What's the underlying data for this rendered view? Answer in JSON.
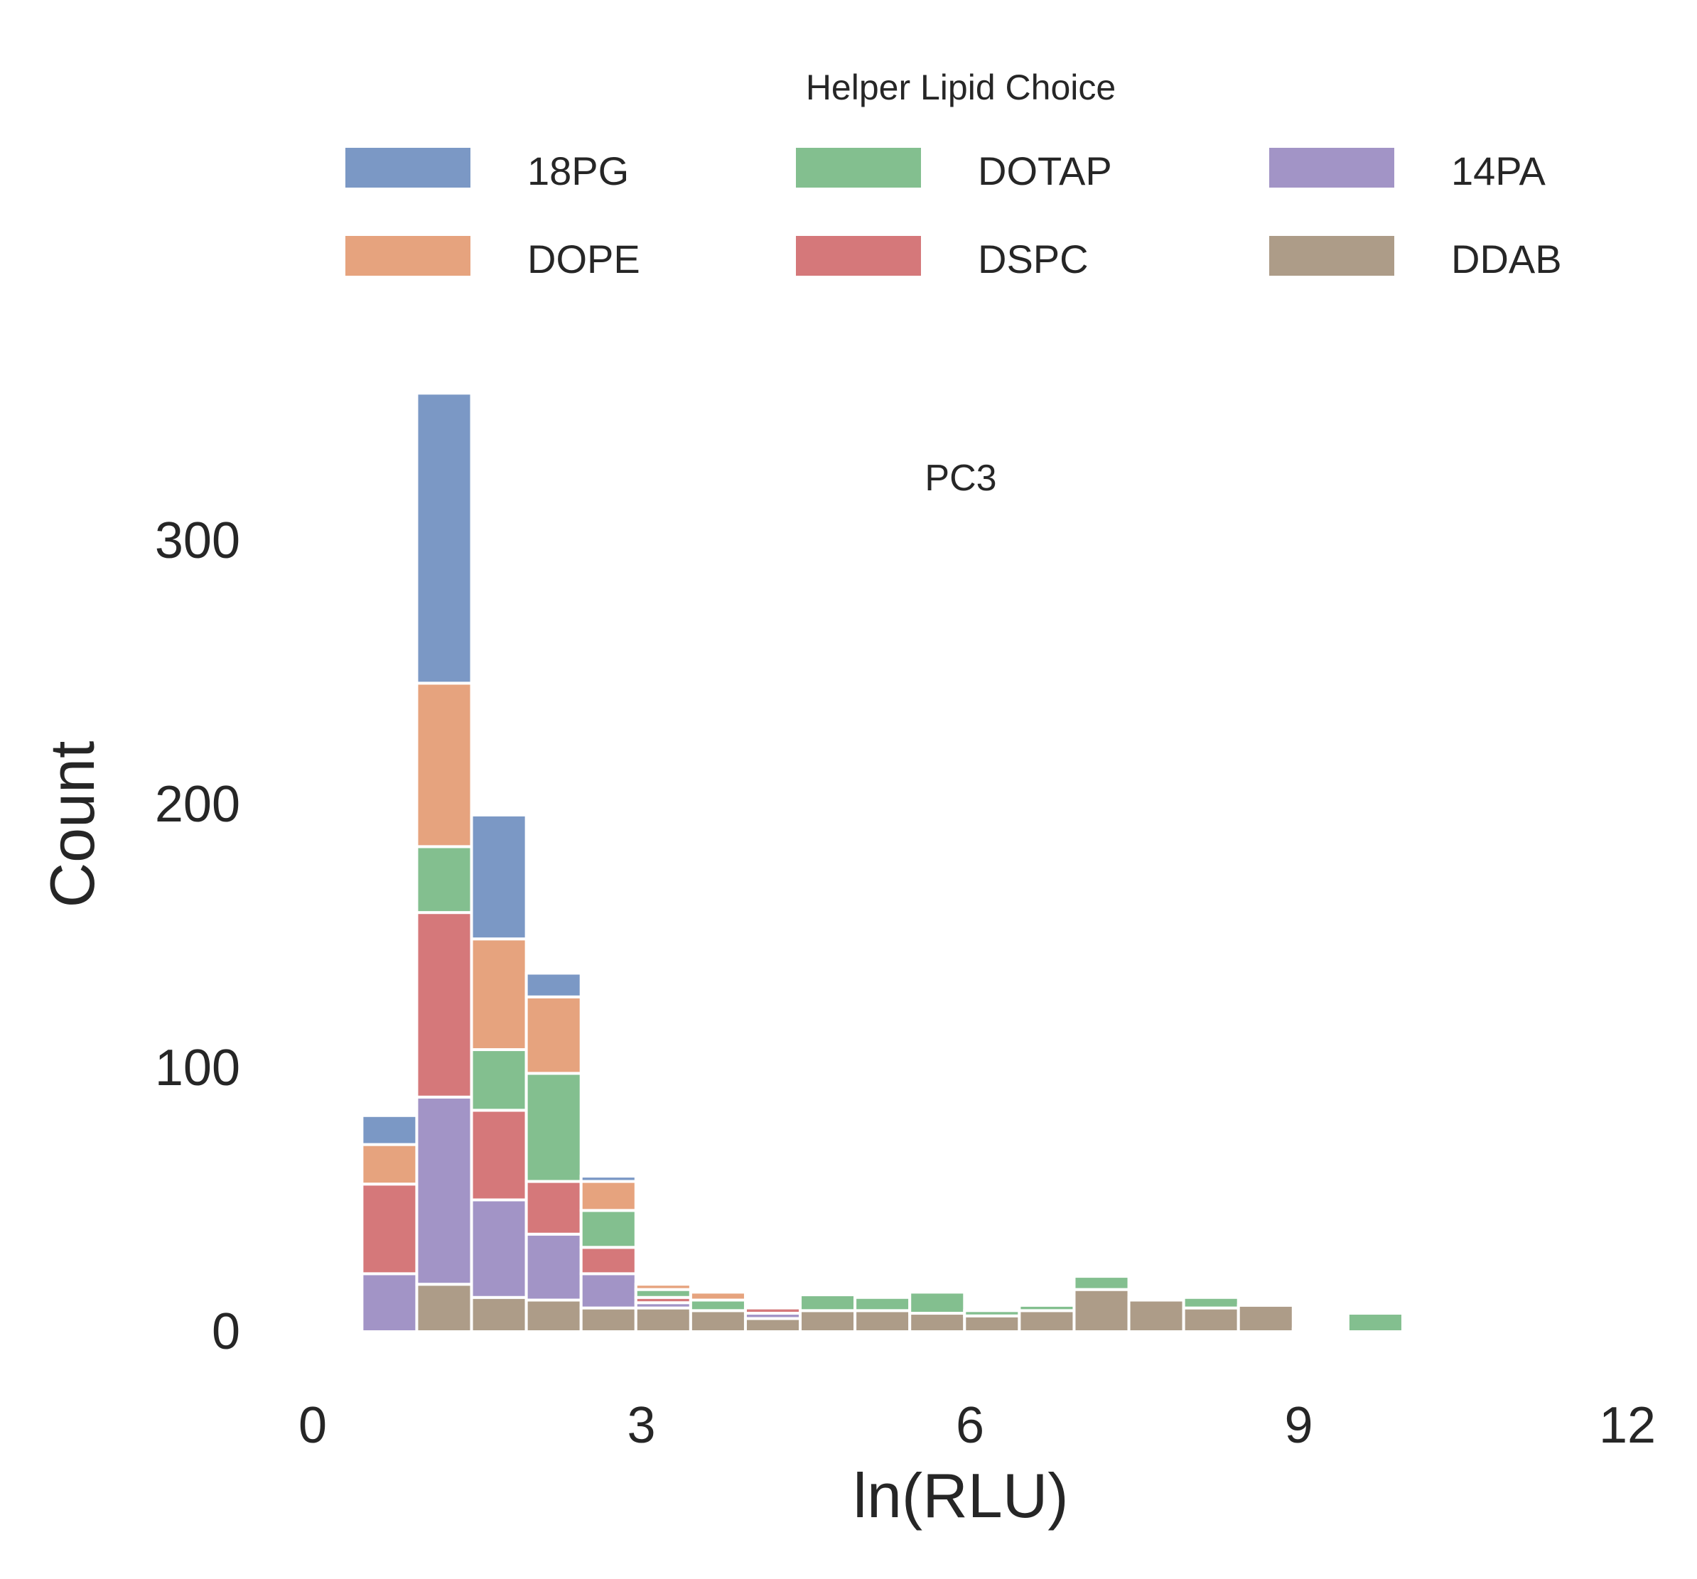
{
  "chart_data": {
    "type": "bar",
    "stacked": true,
    "title": "PC3",
    "xlabel": "ln(RLU)",
    "ylabel": "Count",
    "xlim": [
      0,
      12
    ],
    "ylim": [
      0,
      355
    ],
    "x_ticks": [
      "0",
      "3",
      "6",
      "9",
      "12"
    ],
    "x_tick_values": [
      0,
      3,
      6,
      9,
      12
    ],
    "y_ticks": [
      "0",
      "100",
      "200",
      "300"
    ],
    "y_tick_values": [
      0,
      100,
      200,
      300
    ],
    "grid": false,
    "legend": {
      "title": "Helper Lipid Choice",
      "placement": "top"
    },
    "bin_edges": [
      0.45,
      0.95,
      1.45,
      1.95,
      2.45,
      2.95,
      3.45,
      3.95,
      4.45,
      4.95,
      5.45,
      5.95,
      6.45,
      6.95,
      7.45,
      7.95,
      8.45,
      8.95,
      9.45,
      9.95
    ],
    "series": [
      {
        "name": "DDAB",
        "color": "#ad9c88",
        "values": [
          0,
          18,
          13,
          12,
          9,
          9,
          8,
          5,
          8,
          8,
          7,
          6,
          8,
          16,
          12,
          9,
          10,
          0,
          0
        ]
      },
      {
        "name": "14PA",
        "color": "#a294c6",
        "values": [
          22,
          71,
          37,
          25,
          13,
          2,
          0,
          2,
          0,
          0,
          0,
          0,
          0,
          0,
          0,
          0,
          0,
          0,
          0
        ]
      },
      {
        "name": "DSPC",
        "color": "#d5787a",
        "values": [
          34,
          70,
          34,
          20,
          10,
          2,
          0,
          2,
          0,
          0,
          0,
          0,
          0,
          0,
          0,
          0,
          0,
          0,
          0
        ]
      },
      {
        "name": "DOTAP",
        "color": "#83bf8f",
        "values": [
          0,
          25,
          23,
          41,
          14,
          3,
          4,
          0,
          6,
          5,
          8,
          2,
          2,
          5,
          1,
          4,
          0,
          1,
          7
        ]
      },
      {
        "name": "DOPE",
        "color": "#e6a37e",
        "values": [
          15,
          62,
          42,
          29,
          11,
          2,
          3,
          0,
          0,
          0,
          0,
          0,
          0,
          0,
          0,
          0,
          0,
          0,
          0
        ]
      },
      {
        "name": "18PG",
        "color": "#7b98c5",
        "values": [
          11,
          110,
          47,
          9,
          2,
          0,
          0,
          0,
          0,
          0,
          0,
          0,
          0,
          0,
          0,
          0,
          0,
          0,
          0
        ]
      }
    ],
    "legend_order": [
      "18PG",
      "DOTAP",
      "14PA",
      "DOPE",
      "DSPC",
      "DDAB"
    ]
  }
}
